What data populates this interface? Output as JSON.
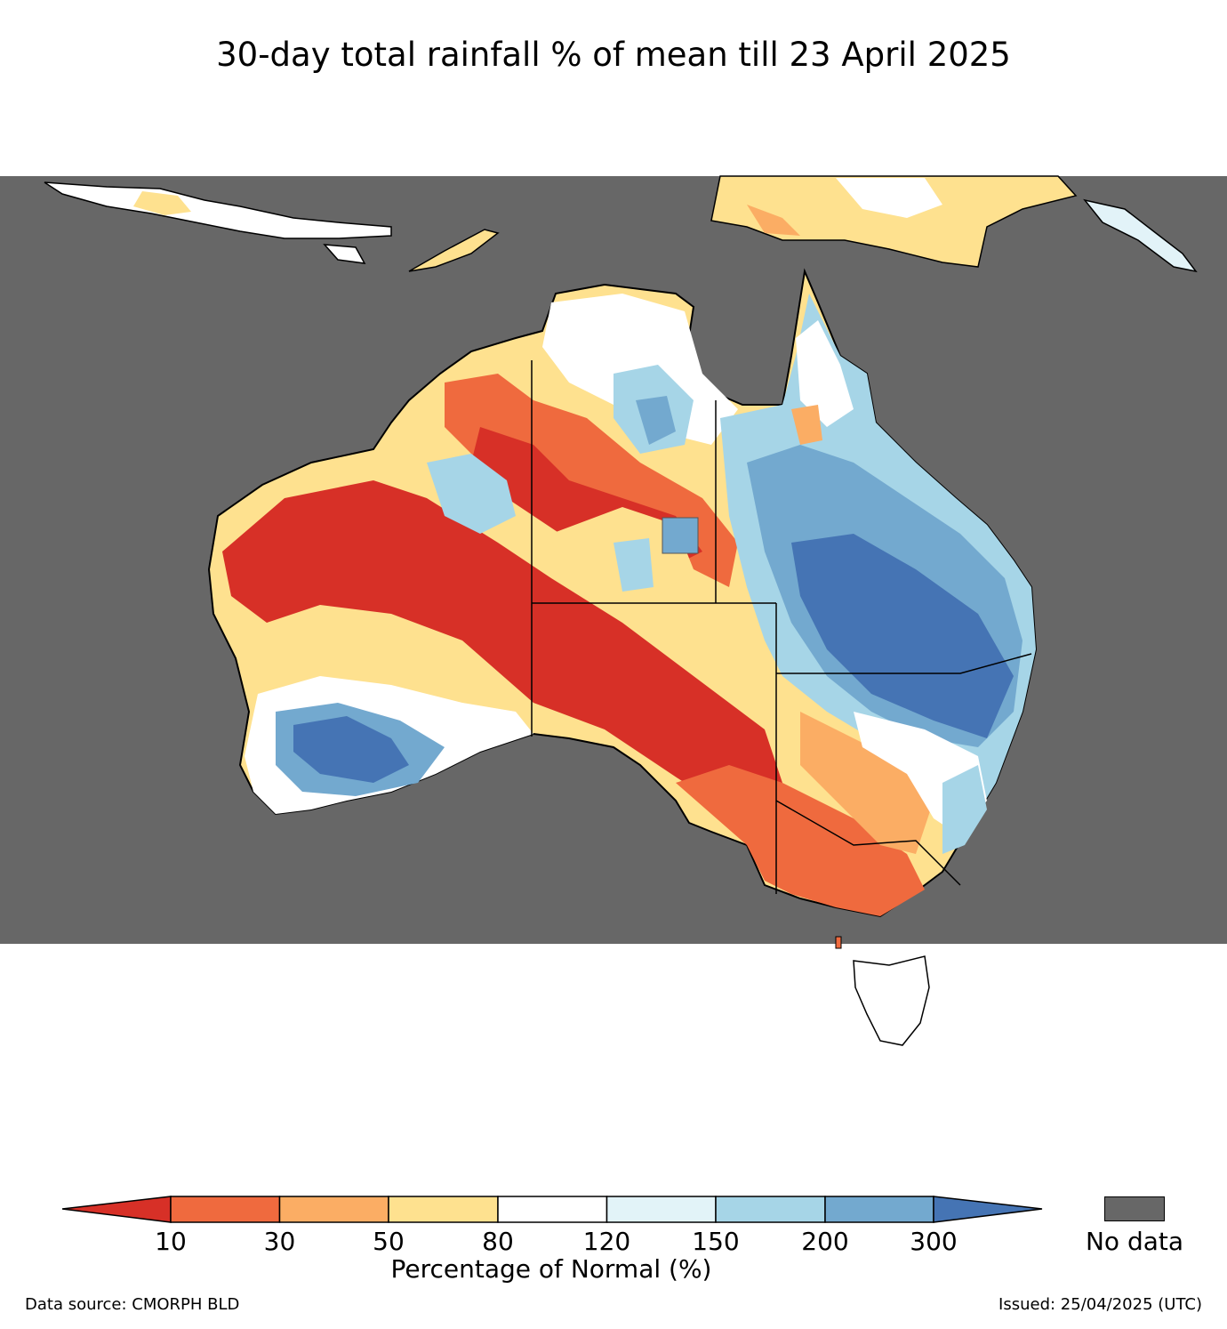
{
  "title": "30-day total rainfall % of mean till 23 April 2025",
  "colors": {
    "no_data": "#676767",
    "bins": [
      "#d73027",
      "#ef6a3e",
      "#fbad64",
      "#fee18f",
      "#ffffff",
      "#e2f3f8",
      "#a6d5e7",
      "#73a9cf",
      "#4574b4"
    ]
  },
  "colorbar": {
    "ticks": [
      "10",
      "30",
      "50",
      "80",
      "120",
      "150",
      "200",
      "300"
    ],
    "label": "Percentage of Normal (%)",
    "no_data_label": "No data"
  },
  "footer": {
    "source": "Data source: CMORPH BLD",
    "issued": "Issued: 25/04/2025 (UTC)"
  }
}
